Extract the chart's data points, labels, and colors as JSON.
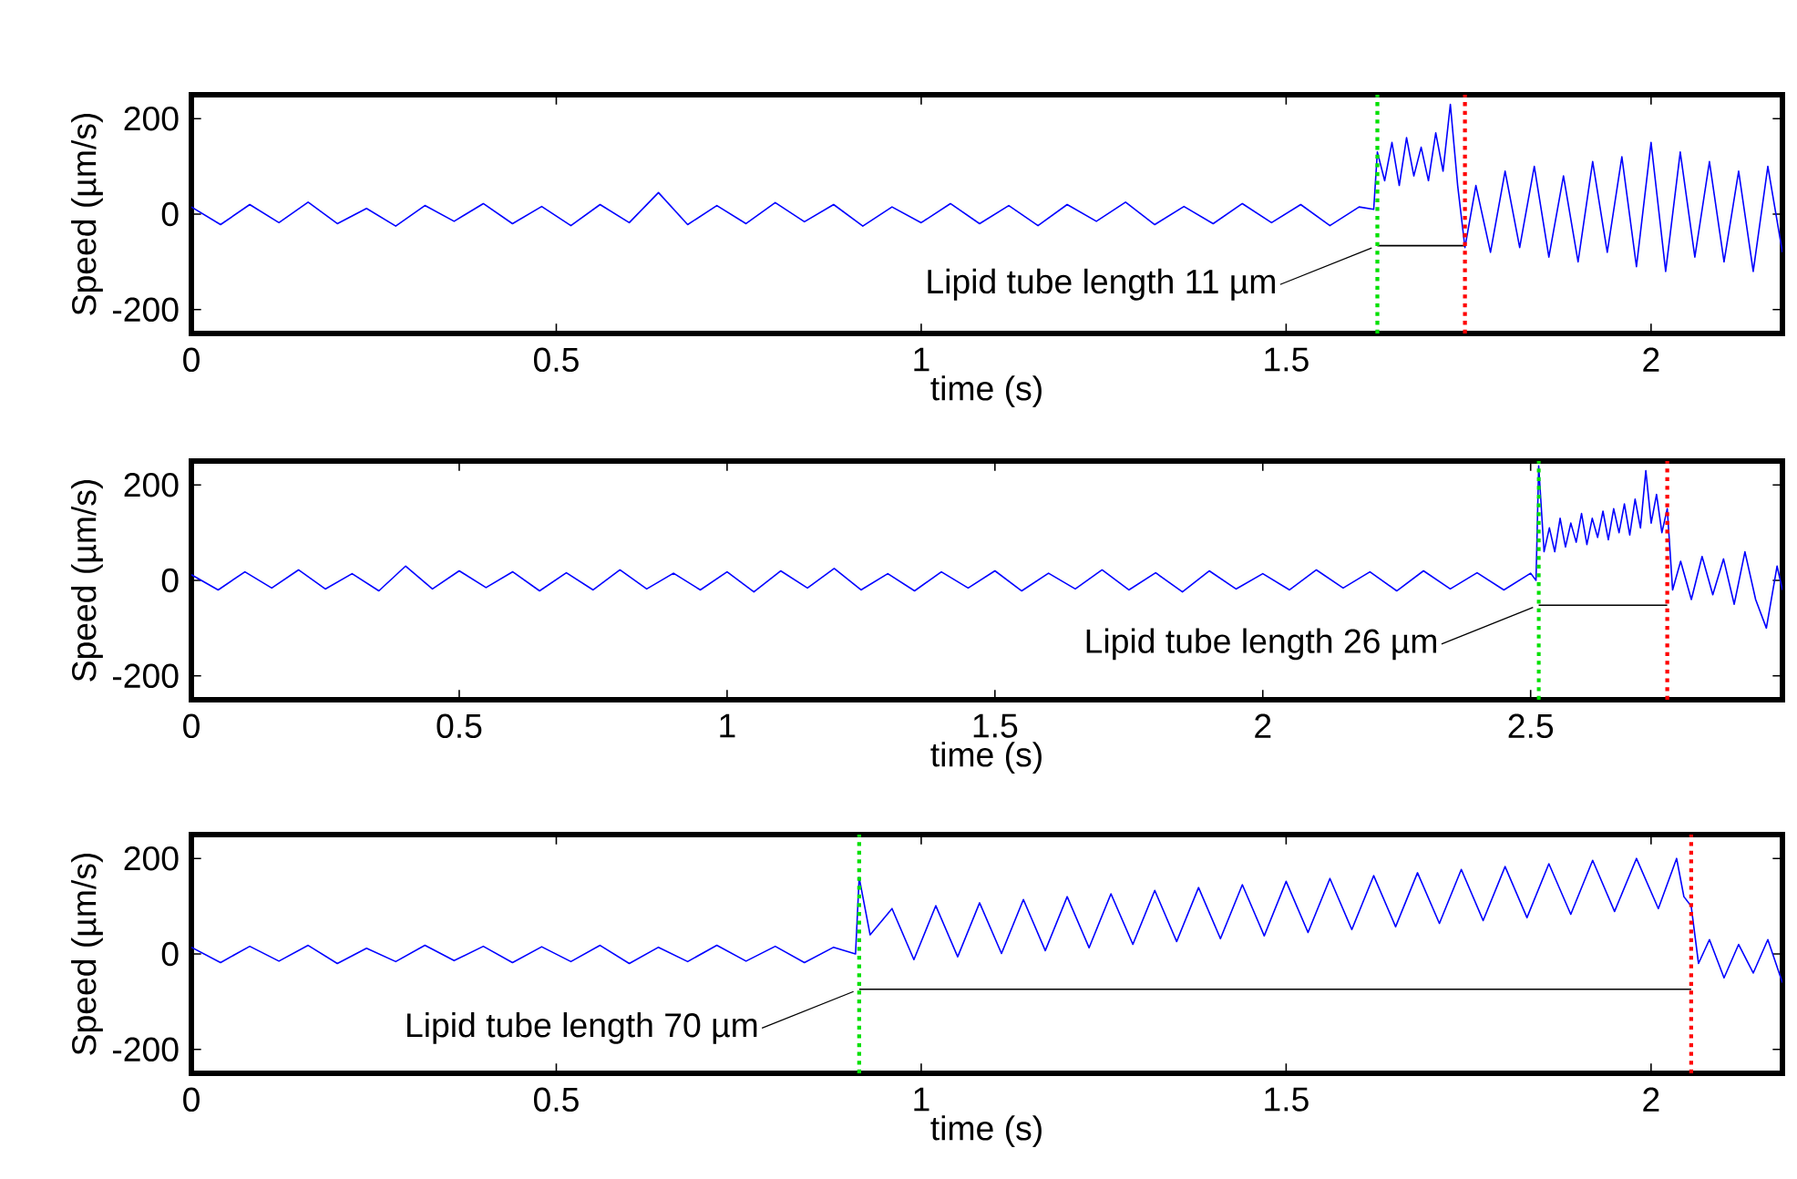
{
  "chart_data": [
    {
      "type": "line",
      "xlabel": "time (s)",
      "ylabel": "Speed (µm/s)",
      "xlim": [
        0,
        2.18
      ],
      "ylim": [
        -250,
        250
      ],
      "xticks": [
        0,
        0.5,
        1,
        1.5,
        2
      ],
      "yticks": [
        -200,
        0,
        200
      ],
      "grid": false,
      "marker": "none",
      "series": [
        {
          "color": "#0000ff",
          "x": [
            0,
            0.04,
            0.08,
            0.12,
            0.16,
            0.2,
            0.24,
            0.28,
            0.32,
            0.36,
            0.4,
            0.44,
            0.48,
            0.52,
            0.56,
            0.6,
            0.64,
            0.68,
            0.72,
            0.76,
            0.8,
            0.84,
            0.88,
            0.92,
            0.96,
            1.0,
            1.04,
            1.08,
            1.12,
            1.16,
            1.2,
            1.24,
            1.28,
            1.32,
            1.36,
            1.4,
            1.44,
            1.48,
            1.52,
            1.56,
            1.6,
            1.62,
            1.625,
            1.635,
            1.645,
            1.655,
            1.665,
            1.675,
            1.685,
            1.695,
            1.705,
            1.715,
            1.725,
            1.735,
            1.745,
            1.76,
            1.78,
            1.8,
            1.82,
            1.84,
            1.86,
            1.88,
            1.9,
            1.92,
            1.94,
            1.96,
            1.98,
            2.0,
            2.02,
            2.04,
            2.06,
            2.08,
            2.1,
            2.12,
            2.14,
            2.16,
            2.18
          ],
          "values": [
            15,
            -22,
            20,
            -18,
            25,
            -20,
            12,
            -25,
            18,
            -15,
            22,
            -20,
            16,
            -24,
            20,
            -18,
            45,
            -22,
            18,
            -20,
            24,
            -16,
            20,
            -25,
            15,
            -18,
            22,
            -20,
            18,
            -24,
            20,
            -15,
            25,
            -22,
            16,
            -20,
            22,
            -18,
            20,
            -24,
            15,
            10,
            130,
            70,
            150,
            60,
            160,
            80,
            140,
            70,
            170,
            90,
            230,
            60,
            -70,
            60,
            -80,
            90,
            -70,
            100,
            -90,
            80,
            -100,
            110,
            -80,
            120,
            -110,
            150,
            -120,
            130,
            -90,
            110,
            -100,
            90,
            -120,
            100,
            -80
          ]
        },
        {
          "type": "line",
          "color": "#000000",
          "x": [
            1.625,
            1.745
          ],
          "values": [
            -66,
            -66
          ]
        }
      ],
      "ref_lines": [
        {
          "axis": "x",
          "value": 1.625,
          "color": "#00e000",
          "line_style": "dotted"
        },
        {
          "axis": "x",
          "value": 1.745,
          "color": "#ff0000",
          "line_style": "dotted"
        }
      ],
      "annotations": [
        {
          "text": "Lipid tube length 11 µm",
          "x": 1.625,
          "y": -66
        }
      ]
    },
    {
      "type": "line",
      "xlabel": "time (s)",
      "ylabel": "Speed (µm/s)",
      "xlim": [
        0,
        2.97
      ],
      "ylim": [
        -250,
        250
      ],
      "xticks": [
        0,
        0.5,
        1,
        1.5,
        2,
        2.5
      ],
      "yticks": [
        -200,
        0,
        200
      ],
      "grid": false,
      "marker": "none",
      "series": [
        {
          "color": "#0000ff",
          "x": [
            0,
            0.05,
            0.1,
            0.15,
            0.2,
            0.25,
            0.3,
            0.35,
            0.4,
            0.45,
            0.5,
            0.55,
            0.6,
            0.65,
            0.7,
            0.75,
            0.8,
            0.85,
            0.9,
            0.95,
            1.0,
            1.05,
            1.1,
            1.15,
            1.2,
            1.25,
            1.3,
            1.35,
            1.4,
            1.45,
            1.5,
            1.55,
            1.6,
            1.65,
            1.7,
            1.75,
            1.8,
            1.85,
            1.9,
            1.95,
            2.0,
            2.05,
            2.1,
            2.15,
            2.2,
            2.25,
            2.3,
            2.35,
            2.4,
            2.45,
            2.5,
            2.51,
            2.515,
            2.525,
            2.535,
            2.545,
            2.555,
            2.565,
            2.575,
            2.585,
            2.595,
            2.605,
            2.615,
            2.625,
            2.635,
            2.645,
            2.655,
            2.665,
            2.675,
            2.685,
            2.695,
            2.705,
            2.715,
            2.725,
            2.735,
            2.745,
            2.755,
            2.765,
            2.78,
            2.8,
            2.82,
            2.84,
            2.86,
            2.88,
            2.9,
            2.92,
            2.94,
            2.96,
            2.97
          ],
          "values": [
            12,
            -20,
            18,
            -16,
            22,
            -18,
            14,
            -22,
            30,
            -18,
            20,
            -15,
            18,
            -22,
            16,
            -20,
            22,
            -18,
            15,
            -20,
            18,
            -24,
            20,
            -16,
            25,
            -20,
            14,
            -22,
            18,
            -16,
            20,
            -22,
            15,
            -18,
            22,
            -20,
            16,
            -24,
            20,
            -18,
            14,
            -20,
            22,
            -16,
            18,
            -22,
            20,
            -18,
            16,
            -20,
            15,
            0,
            240,
            60,
            110,
            60,
            130,
            70,
            120,
            80,
            140,
            75,
            130,
            90,
            145,
            85,
            150,
            100,
            160,
            95,
            170,
            110,
            230,
            120,
            180,
            100,
            150,
            -20,
            40,
            -40,
            50,
            -30,
            45,
            -50,
            60,
            -40,
            -100,
            30,
            -20
          ]
        },
        {
          "type": "line",
          "color": "#000000",
          "x": [
            2.515,
            2.755
          ],
          "values": [
            -52,
            -52
          ]
        }
      ],
      "ref_lines": [
        {
          "axis": "x",
          "value": 2.515,
          "color": "#00e000",
          "line_style": "dotted"
        },
        {
          "axis": "x",
          "value": 2.755,
          "color": "#ff0000",
          "line_style": "dotted"
        }
      ],
      "annotations": [
        {
          "text": "Lipid tube length 26 µm",
          "x": 2.515,
          "y": -52
        }
      ]
    },
    {
      "type": "line",
      "xlabel": "time (s)",
      "ylabel": "Speed (µm/s)",
      "xlim": [
        0,
        2.18
      ],
      "ylim": [
        -250,
        250
      ],
      "xticks": [
        0,
        0.5,
        1,
        1.5,
        2
      ],
      "yticks": [
        -200,
        0,
        200
      ],
      "grid": false,
      "marker": "none",
      "series": [
        {
          "color": "#0000ff",
          "x": [
            0,
            0.04,
            0.08,
            0.12,
            0.16,
            0.2,
            0.24,
            0.28,
            0.32,
            0.36,
            0.4,
            0.44,
            0.48,
            0.52,
            0.56,
            0.6,
            0.64,
            0.68,
            0.72,
            0.76,
            0.8,
            0.84,
            0.88,
            0.91,
            0.915,
            0.93,
            0.96,
            0.99,
            1.02,
            1.05,
            1.08,
            1.11,
            1.14,
            1.17,
            1.2,
            1.23,
            1.26,
            1.29,
            1.32,
            1.35,
            1.38,
            1.41,
            1.44,
            1.47,
            1.5,
            1.53,
            1.56,
            1.59,
            1.62,
            1.65,
            1.68,
            1.71,
            1.74,
            1.77,
            1.8,
            1.83,
            1.86,
            1.89,
            1.92,
            1.95,
            1.98,
            2.01,
            2.035,
            2.045,
            2.055,
            2.065,
            2.08,
            2.1,
            2.12,
            2.14,
            2.16,
            2.18
          ],
          "values": [
            14,
            -18,
            16,
            -15,
            18,
            -20,
            12,
            -16,
            18,
            -14,
            16,
            -18,
            15,
            -16,
            18,
            -20,
            14,
            -16,
            18,
            -15,
            16,
            -18,
            14,
            0,
            160,
            40,
            95,
            -12,
            101,
            -6,
            107,
            1,
            114,
            7,
            120,
            13,
            126,
            20,
            133,
            26,
            139,
            32,
            145,
            38,
            152,
            45,
            158,
            51,
            164,
            57,
            170,
            64,
            177,
            70,
            183,
            76,
            189,
            83,
            196,
            89,
            200,
            95,
            200,
            120,
            100,
            -20,
            30,
            -50,
            20,
            -40,
            30,
            -60
          ]
        },
        {
          "type": "line",
          "color": "#000000",
          "x": [
            0.915,
            2.055
          ],
          "values": [
            -74,
            -74
          ]
        }
      ],
      "ref_lines": [
        {
          "axis": "x",
          "value": 0.915,
          "color": "#00e000",
          "line_style": "dotted"
        },
        {
          "axis": "x",
          "value": 2.055,
          "color": "#ff0000",
          "line_style": "dotted"
        }
      ],
      "annotations": [
        {
          "text": "Lipid tube length 70 µm",
          "x": 0.915,
          "y": -74
        }
      ]
    }
  ]
}
